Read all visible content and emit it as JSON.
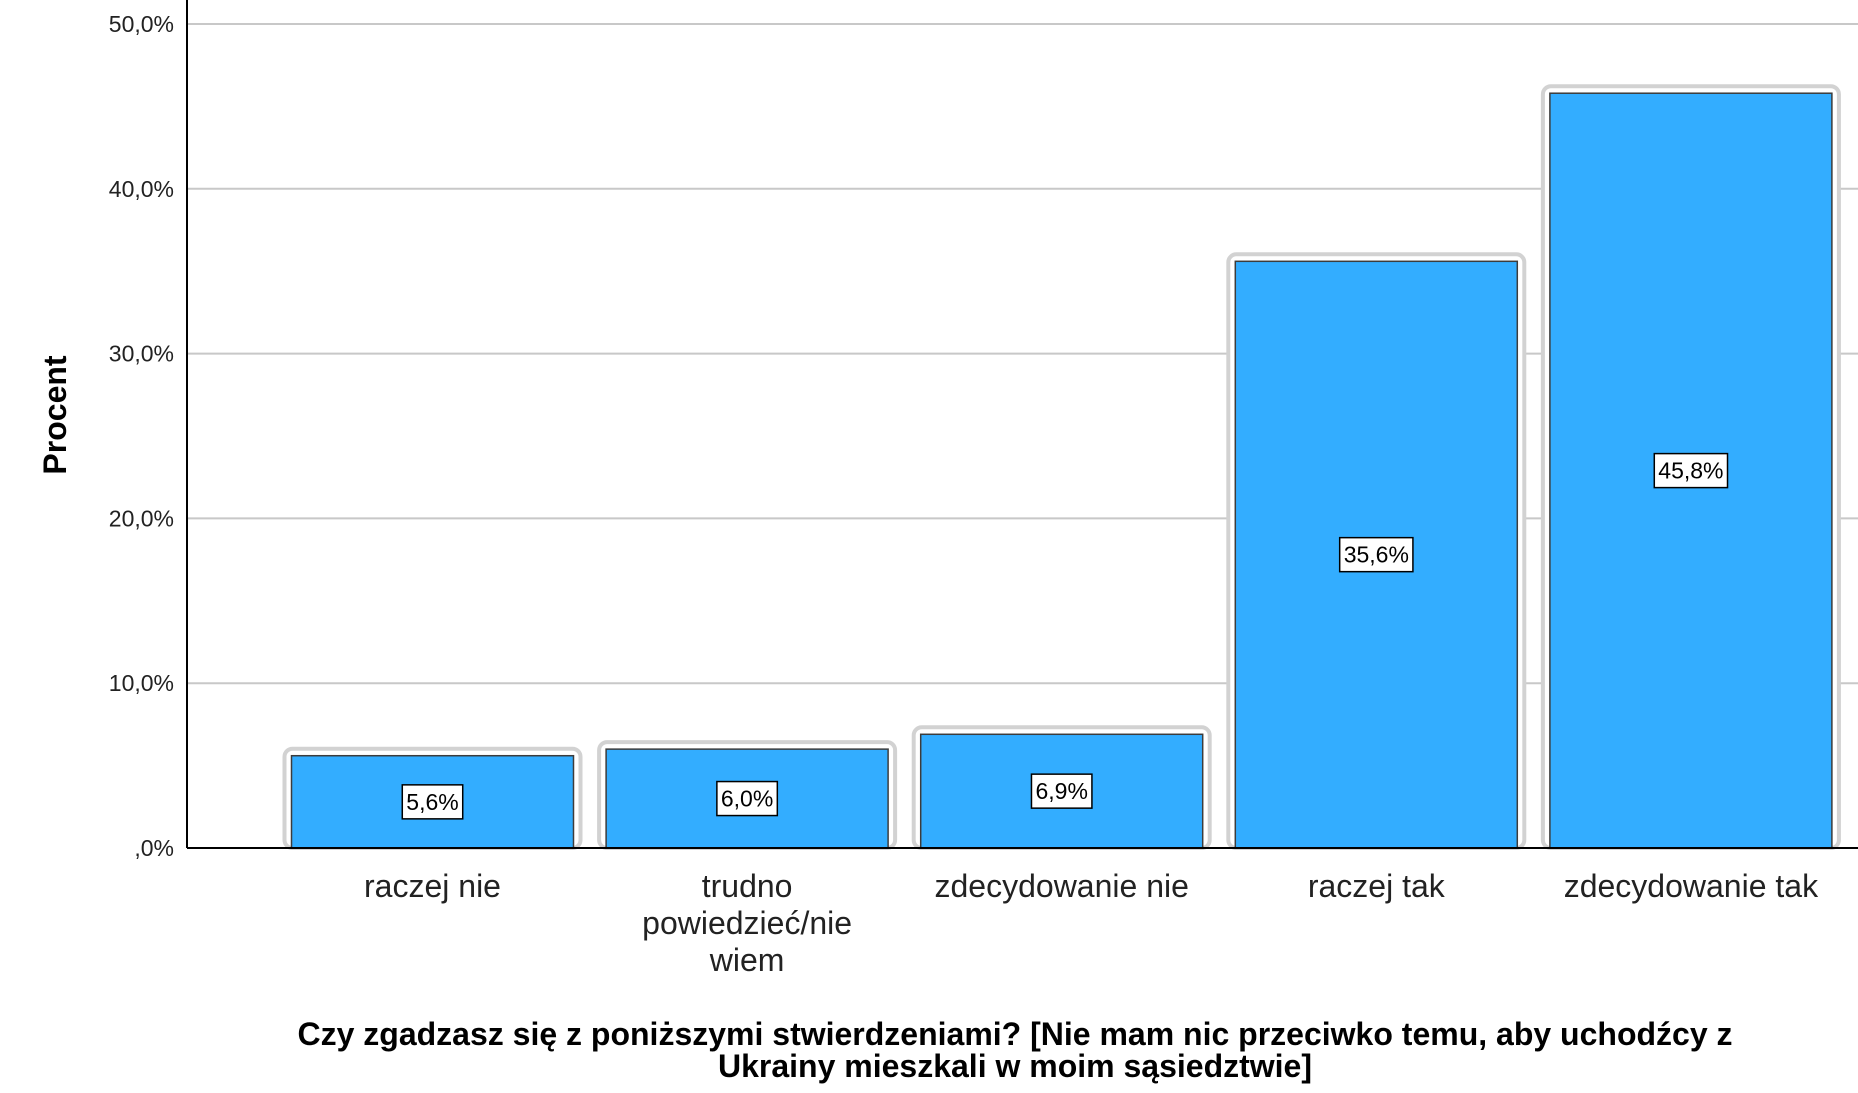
{
  "chart_data": {
    "type": "bar",
    "categories": [
      "raczej nie",
      "trudno powiedzieć/nie wiem",
      "zdecydowanie nie",
      "raczej tak",
      "zdecydowanie tak"
    ],
    "category_label_lines": [
      [
        "raczej nie"
      ],
      [
        "trudno",
        "powiedzieć/nie",
        "wiem"
      ],
      [
        "zdecydowanie nie"
      ],
      [
        "raczej tak"
      ],
      [
        "zdecydowanie tak"
      ]
    ],
    "values": [
      5.6,
      6.0,
      6.9,
      35.6,
      45.8
    ],
    "data_labels": [
      "5,6%",
      "6,0%",
      "6,9%",
      "35,6%",
      "45,8%"
    ],
    "ylabel": "Procent",
    "xlabel_lines": [
      "Czy zgadzasz się z poniższymi stwierdzeniami? [Nie mam nic przeciwko temu, aby uchodźcy z",
      "Ukrainy mieszkali w moim sąsiedztwie]"
    ],
    "ylim": [
      0,
      50
    ],
    "yticks": [
      0,
      10,
      20,
      30,
      40,
      50
    ],
    "ytick_labels": [
      ",0%",
      "10,0%",
      "20,0%",
      "30,0%",
      "40,0%",
      "50,0%"
    ],
    "grid": true,
    "legend": "none",
    "colors": {
      "bar_fill": "#33adff",
      "bar_stroke": "#3c3c3c",
      "bar_halo": "#d2d2d2",
      "grid": "#c8c8c8",
      "axis": "#000000"
    }
  }
}
